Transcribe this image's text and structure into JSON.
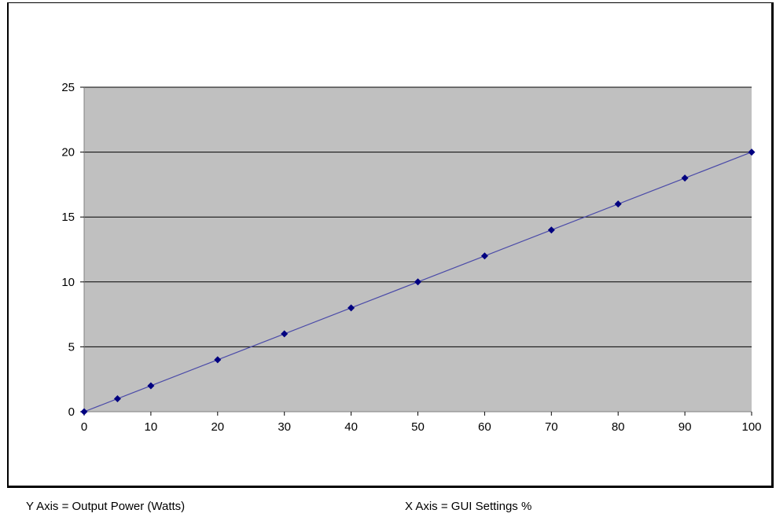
{
  "footer": {
    "y_axis_note": "Y Axis = Output Power (Watts)",
    "x_axis_note": "X Axis = GUI Settings %"
  },
  "colors": {
    "plot_background": "#c0c0c0",
    "gridline": "#000000",
    "series_line": "#4a4aa8",
    "marker": "#000080"
  },
  "chart_data": {
    "type": "line",
    "title": "",
    "xlabel": "",
    "ylabel": "",
    "xlim": [
      0,
      100
    ],
    "ylim": [
      0,
      25
    ],
    "x_ticks": [
      0,
      10,
      20,
      30,
      40,
      50,
      60,
      70,
      80,
      90,
      100
    ],
    "y_ticks": [
      0,
      5,
      10,
      15,
      20,
      25
    ],
    "grid": "horizontal",
    "legend": "none",
    "marker": "diamond",
    "series": [
      {
        "x": [
          0,
          5,
          10,
          20,
          30,
          40,
          50,
          60,
          70,
          80,
          90,
          100
        ],
        "values": [
          0,
          1,
          2,
          4,
          6,
          8,
          10,
          12,
          14,
          16,
          18,
          20
        ]
      }
    ]
  }
}
